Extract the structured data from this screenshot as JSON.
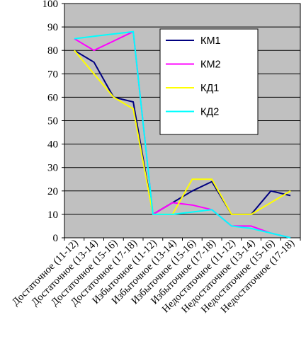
{
  "chart_data": {
    "type": "line",
    "title": "",
    "xlabel": "",
    "ylabel": "",
    "ylim": [
      0,
      100
    ],
    "yticks": [
      0,
      10,
      20,
      30,
      40,
      50,
      60,
      70,
      80,
      90,
      100
    ],
    "grid": true,
    "plot_background": "#c0c0c0",
    "legend_position": "top-right",
    "categories": [
      "Достаточное (11-12)",
      "Достаточное (13-14)",
      "Достаточное (15-16)",
      "Достаточное (17-18)",
      "Избыточное (11-12)",
      "Избыточное (13-14)",
      "Избыточное (15-16)",
      "Избыточное (17-18)",
      "Недостаточное (11-12)",
      "Недостаточное (13-14)",
      "Недостаточное (15-16)",
      "Недостаточное (17-18)"
    ],
    "series": [
      {
        "name": "КМ1",
        "color": "#000080",
        "values": [
          80,
          75,
          60,
          58,
          10,
          15,
          20,
          24,
          10,
          10,
          20,
          18
        ]
      },
      {
        "name": "КМ2",
        "color": "#ff00ff",
        "values": [
          85,
          80,
          84,
          88,
          10,
          15,
          14,
          12,
          5,
          5,
          2,
          0
        ]
      },
      {
        "name": "КД1",
        "color": "#ffff00",
        "values": [
          80,
          70,
          60,
          55,
          10,
          10,
          25,
          25,
          10,
          10,
          15,
          20
        ]
      },
      {
        "name": "КД2",
        "color": "#00ffff",
        "values": [
          85,
          86,
          87,
          88,
          10,
          10,
          11,
          12,
          5,
          4,
          2,
          0
        ]
      }
    ]
  }
}
